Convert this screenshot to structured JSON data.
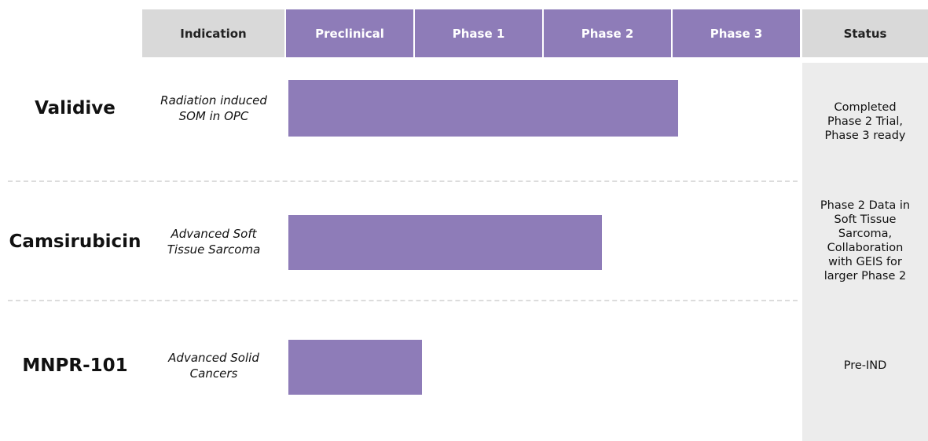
{
  "header": {
    "columns": [
      "Indication",
      "Preclinical",
      "Phase 1",
      "Phase 2",
      "Phase 3",
      "Status"
    ]
  },
  "rows": [
    {
      "name": "Validive",
      "indication": [
        "Radiation induced",
        "SOM in OPC"
      ],
      "status": [
        "Completed",
        "Phase 2 Trial,",
        "Phase 3 ready"
      ]
    },
    {
      "name": "Camsirubicin",
      "indication": [
        "Advanced Soft",
        "Tissue Sarcoma"
      ],
      "status": [
        "Phase 2 Data in",
        "Soft Tissue",
        "Sarcoma,",
        "Collaboration",
        "with GEIS for",
        "larger Phase 2"
      ]
    },
    {
      "name": "MNPR-101",
      "indication": [
        "Advanced Solid",
        "Cancers"
      ],
      "status": [
        "Pre-IND"
      ]
    }
  ]
}
